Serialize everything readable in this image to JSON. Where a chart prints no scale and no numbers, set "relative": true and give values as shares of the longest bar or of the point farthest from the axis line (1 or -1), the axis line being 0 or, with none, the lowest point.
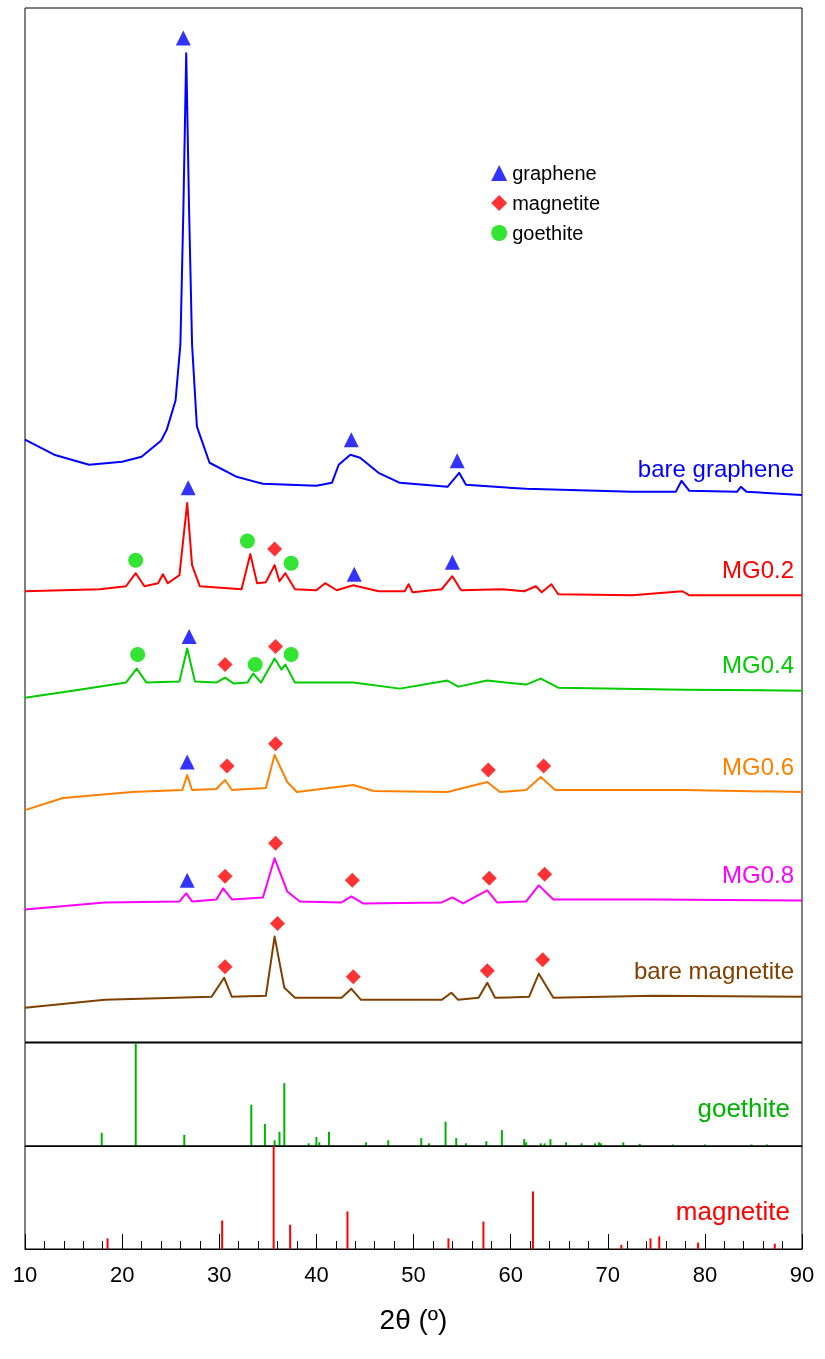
{
  "chart_data": [
    {
      "type": "line",
      "relative": true,
      "xlim": [
        10,
        90
      ],
      "tick_labels": false,
      "marker": "none",
      "legend": "top right",
      "series": [
        {
          "name": "bare graphene",
          "color": "#0000ff",
          "x": [
            10,
            13,
            16.6,
            20,
            22,
            24,
            24.6,
            25.5,
            26.0,
            26.3,
            26.6,
            26.9,
            27.2,
            27.7,
            29.0,
            31.8,
            34.5,
            40,
            41.6,
            42.3,
            43.5,
            44.5,
            46.4,
            48.6,
            53.5,
            54.7,
            55.4,
            61.6,
            72.5,
            77.0,
            77.6,
            78.4,
            83.3,
            83.7,
            84.3,
            90
          ],
          "values": [
            0.6,
            0.585,
            0.575,
            0.578,
            0.583,
            0.599,
            0.61,
            0.639,
            0.695,
            0.826,
            0.985,
            0.826,
            0.695,
            0.613,
            0.577,
            0.563,
            0.556,
            0.554,
            0.557,
            0.575,
            0.585,
            0.582,
            0.567,
            0.557,
            0.553,
            0.567,
            0.555,
            0.551,
            0.548,
            0.548,
            0.559,
            0.549,
            0.548,
            0.553,
            0.548,
            0.545
          ]
        },
        {
          "name": "MG0.2",
          "color": "#ff0000",
          "x": [
            10,
            17.7,
            20.4,
            21.4,
            22.3,
            23.7,
            24.2,
            24.7,
            25.9,
            26.7,
            27.2,
            28.0,
            32.3,
            33.2,
            33.9,
            34.8,
            35.7,
            36.2,
            36.8,
            37.8,
            40.0,
            40.9,
            42.1,
            43.8,
            46.4,
            49.1,
            49.5,
            49.9,
            52.9,
            54.0,
            54.9,
            59.2,
            61.4,
            62.6,
            63.2,
            64.2,
            64.9,
            72.5,
            77.7,
            78.4,
            90
          ],
          "values": [
            0.449,
            0.451,
            0.454,
            0.467,
            0.454,
            0.457,
            0.466,
            0.457,
            0.465,
            0.537,
            0.475,
            0.454,
            0.451,
            0.486,
            0.457,
            0.458,
            0.475,
            0.459,
            0.467,
            0.451,
            0.45,
            0.457,
            0.45,
            0.455,
            0.449,
            0.449,
            0.456,
            0.448,
            0.451,
            0.464,
            0.45,
            0.451,
            0.449,
            0.454,
            0.448,
            0.456,
            0.446,
            0.445,
            0.449,
            0.445,
            0.445
          ]
        },
        {
          "name": "MG0.4",
          "color": "#00cc00",
          "x": [
            10,
            15.6,
            20.4,
            21.5,
            22.5,
            25.9,
            26.7,
            27.5,
            29.7,
            30.6,
            31.5,
            32.9,
            33.5,
            34.3,
            35.7,
            36.4,
            36.8,
            37.8,
            43.8,
            48.6,
            53.5,
            54.6,
            57.6,
            61.6,
            63.1,
            64.9,
            77.9,
            90
          ],
          "values": [
            0.343,
            0.351,
            0.358,
            0.372,
            0.358,
            0.359,
            0.392,
            0.359,
            0.358,
            0.363,
            0.357,
            0.358,
            0.367,
            0.358,
            0.382,
            0.371,
            0.376,
            0.358,
            0.358,
            0.352,
            0.36,
            0.354,
            0.36,
            0.356,
            0.362,
            0.353,
            0.351,
            0.35
          ]
        },
        {
          "name": "MG0.6",
          "color": "#ff8000",
          "x": [
            10,
            13.9,
            21.0,
            26.2,
            26.7,
            27.2,
            29.7,
            30.6,
            31.3,
            34.8,
            35.7,
            37.0,
            38.0,
            43.8,
            45.9,
            53.5,
            57.6,
            58.9,
            61.6,
            63.1,
            64.6,
            77.9,
            90
          ],
          "values": [
            0.231,
            0.243,
            0.249,
            0.251,
            0.266,
            0.251,
            0.252,
            0.261,
            0.251,
            0.253,
            0.286,
            0.259,
            0.249,
            0.256,
            0.25,
            0.249,
            0.259,
            0.249,
            0.251,
            0.264,
            0.251,
            0.251,
            0.249
          ]
        },
        {
          "name": "MG0.8",
          "color": "#ff00ff",
          "x": [
            10,
            18.2,
            25.9,
            26.6,
            27.2,
            29.7,
            30.4,
            31.3,
            34.5,
            35.7,
            37.0,
            38.3,
            42.6,
            43.6,
            44.8,
            52.9,
            54.0,
            55.1,
            57.6,
            58.6,
            61.6,
            62.9,
            64.4,
            74.7,
            90
          ],
          "values": [
            0.132,
            0.139,
            0.14,
            0.148,
            0.14,
            0.142,
            0.153,
            0.142,
            0.144,
            0.183,
            0.15,
            0.14,
            0.139,
            0.145,
            0.138,
            0.139,
            0.144,
            0.138,
            0.151,
            0.139,
            0.14,
            0.156,
            0.142,
            0.142,
            0.141
          ]
        },
        {
          "name": "bare magnetite",
          "color": "#804000",
          "x": [
            10,
            18.2,
            29.2,
            30.5,
            31.3,
            34.8,
            35.7,
            36.7,
            37.8,
            42.6,
            43.6,
            44.6,
            52.9,
            53.9,
            54.6,
            56.7,
            57.6,
            58.4,
            61.9,
            62.9,
            64.4,
            74.7,
            90
          ],
          "values": [
            0.034,
            0.042,
            0.045,
            0.064,
            0.045,
            0.046,
            0.105,
            0.054,
            0.044,
            0.044,
            0.053,
            0.042,
            0.042,
            0.049,
            0.042,
            0.044,
            0.059,
            0.044,
            0.045,
            0.068,
            0.044,
            0.046,
            0.045
          ]
        },
        {
          "name": "graphene",
          "type": "scatter",
          "marker": "triangle",
          "color": "#0000ff",
          "x": [
            26.3,
            43.6,
            54.5,
            26.8,
            43.9,
            54.0,
            26.9,
            26.7,
            26.7
          ],
          "values": [
            1,
            0.6,
            0.579,
            0.552,
            0.466,
            0.478,
            0.404,
            0.279,
            0.161
          ]
        },
        {
          "name": "magnetite",
          "type": "scatter",
          "marker": "diamond",
          "color": "#ff0000",
          "x": [
            35.7,
            30.6,
            35.8,
            30.8,
            35.8,
            57.7,
            63.4,
            30.6,
            35.8,
            43.7,
            57.8,
            63.5,
            30.6,
            36.0,
            43.8,
            57.6,
            63.3
          ],
          "values": [
            0.491,
            0.376,
            0.394,
            0.275,
            0.297,
            0.271,
            0.275,
            0.165,
            0.198,
            0.161,
            0.163,
            0.167,
            0.075,
            0.118,
            0.065,
            0.071,
            0.082
          ]
        },
        {
          "name": "goethite",
          "type": "scatter",
          "marker": "circle",
          "color": "#00dd00",
          "x": [
            21.4,
            32.9,
            37.4,
            21.6,
            33.7,
            37.4
          ],
          "values": [
            0.48,
            0.499,
            0.477,
            0.386,
            0.376,
            0.386
          ]
        }
      ]
    },
    {
      "type": "bar",
      "relative": true,
      "xlim": [
        10,
        90
      ],
      "tick_labels": false,
      "series": [
        {
          "name": "goethite",
          "color": "#00b300",
          "x": [
            17.9,
            21.4,
            26.4,
            33.3,
            34.7,
            35.7,
            36.2,
            36.7,
            39.2,
            40.0,
            40.3,
            41.3,
            45.1,
            47.4,
            50.8,
            51.6,
            53.3,
            54.4,
            55.4,
            57.5,
            59.1,
            61.4,
            61.6,
            63.1,
            63.5,
            64.1,
            65.7,
            67.3,
            68.7,
            69.1,
            69.3,
            71.6,
            73.3,
            76.7,
            80.0,
            84.8,
            86.4
          ],
          "values": [
            0.128,
            1,
            0.108,
            0.4,
            0.215,
            0.056,
            0.138,
            0.61,
            0.026,
            0.087,
            0.036,
            0.138,
            0.036,
            0.056,
            0.077,
            0.026,
            0.236,
            0.077,
            0.026,
            0.046,
            0.154,
            0.067,
            0.036,
            0.026,
            0.026,
            0.067,
            0.036,
            0.026,
            0.026,
            0.036,
            0.026,
            0.036,
            0.021,
            0.015,
            0.015,
            0.015,
            0.015
          ]
        }
      ]
    },
    {
      "type": "bar",
      "relative": true,
      "xlim": [
        10,
        90
      ],
      "tick_labels": "x",
      "xlabel": "2θ (º)",
      "xticks": [
        10,
        {
          "value": 12,
          "label": null
        },
        {
          "value": 14,
          "label": null
        },
        {
          "value": 16,
          "label": null
        },
        {
          "value": 18,
          "label": null
        },
        20,
        {
          "value": 22,
          "label": null
        },
        {
          "value": 24,
          "label": null
        },
        {
          "value": 26,
          "label": null
        },
        {
          "value": 28,
          "label": null
        },
        30,
        {
          "value": 32,
          "label": null
        },
        {
          "value": 34,
          "label": null
        },
        {
          "value": 36,
          "label": null
        },
        {
          "value": 38,
          "label": null
        },
        40,
        {
          "value": 42,
          "label": null
        },
        {
          "value": 44,
          "label": null
        },
        {
          "value": 46,
          "label": null
        },
        {
          "value": 48,
          "label": null
        },
        50,
        {
          "value": 52,
          "label": null
        },
        {
          "value": 54,
          "label": null
        },
        {
          "value": 56,
          "label": null
        },
        {
          "value": 58,
          "label": null
        },
        60,
        {
          "value": 62,
          "label": null
        },
        {
          "value": 64,
          "label": null
        },
        {
          "value": 66,
          "label": null
        },
        {
          "value": 68,
          "label": null
        },
        70,
        {
          "value": 72,
          "label": null
        },
        {
          "value": 74,
          "label": null
        },
        {
          "value": 76,
          "label": null
        },
        {
          "value": 78,
          "label": null
        },
        80,
        {
          "value": 82,
          "label": null
        },
        {
          "value": 84,
          "label": null
        },
        {
          "value": 86,
          "label": null
        },
        {
          "value": 88,
          "label": null
        },
        90
      ],
      "series": [
        {
          "name": "magnetite",
          "color": "#ff0000",
          "x": [
            18.5,
            30.3,
            35.6,
            37.3,
            43.2,
            53.6,
            57.2,
            62.3,
            71.4,
            74.4,
            75.3,
            79.3,
            87.2
          ],
          "values": [
            0.103,
            0.277,
            1,
            0.236,
            0.364,
            0.103,
            0.267,
            0.559,
            0.041,
            0.103,
            0.123,
            0.062,
            0.051
          ]
        }
      ]
    }
  ]
}
